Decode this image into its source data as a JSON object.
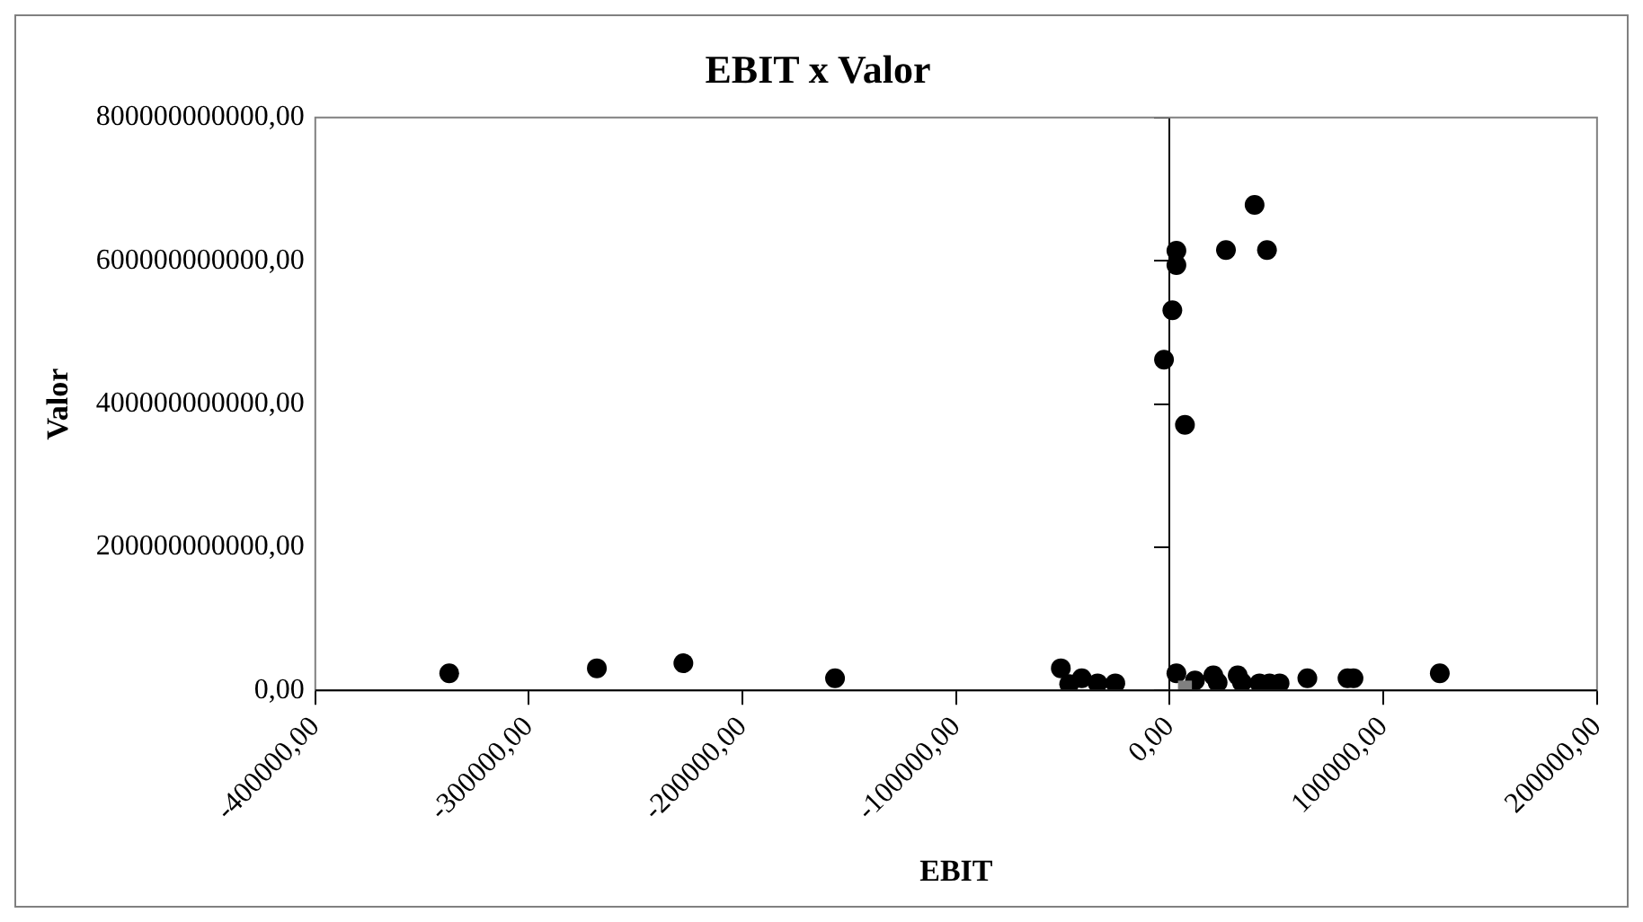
{
  "chart_data": {
    "type": "scatter",
    "title": "EBIT x Valor",
    "xlabel": "EBIT",
    "ylabel": "Valor",
    "series": [
      {
        "color": "#000000",
        "marker": "circle",
        "x": [
          -337300,
          -268200,
          -227700,
          -156700,
          -51000,
          -47100,
          -41200,
          -33800,
          -25500,
          3100,
          3100,
          3100,
          1200,
          -2700,
          7100,
          26300,
          39700,
          45500,
          11800,
          20400,
          22400,
          31800,
          33800,
          42000,
          46700,
          51400,
          64400,
          83200,
          86000,
          126400
        ],
        "values": [
          24000000000,
          31000000000,
          38000000000,
          17000000000,
          31000000000,
          9000000000,
          17000000000,
          10000000000,
          10000000000,
          24000000000,
          614000000000,
          594000000000,
          531000000000,
          462000000000,
          371000000000,
          615000000000,
          678000000000,
          615000000000,
          14000000000,
          21000000000,
          11000000000,
          21000000000,
          11000000000,
          10000000000,
          10000000000,
          10000000000,
          17000000000,
          17000000000,
          17000000000,
          24000000000
        ]
      },
      {
        "color": "#808080",
        "marker": "square",
        "x": [
          7100
        ],
        "values": [
          4000000000
        ]
      }
    ],
    "xlim": [
      -400000,
      200000
    ],
    "xticks": [
      {
        "value": -400000,
        "label": "-400000,00"
      },
      {
        "value": -300000,
        "label": "-300000,00"
      },
      {
        "value": -200000,
        "label": "-200000,00"
      },
      {
        "value": -100000,
        "label": "-100000,00"
      },
      {
        "value": 0,
        "label": "0,00"
      },
      {
        "value": 100000,
        "label": "100000,00"
      },
      {
        "value": 200000,
        "label": "200000,00"
      }
    ],
    "ylim": [
      0,
      800000000000
    ],
    "yticks": [
      {
        "value": 0,
        "label": "0,00"
      },
      {
        "value": 200000000000,
        "label": "200000000000,00"
      },
      {
        "value": 400000000000,
        "label": "400000000000,00"
      },
      {
        "value": 600000000000,
        "label": "600000000000,00"
      },
      {
        "value": 800000000000,
        "label": "800000000000,00"
      }
    ],
    "legend": false
  }
}
